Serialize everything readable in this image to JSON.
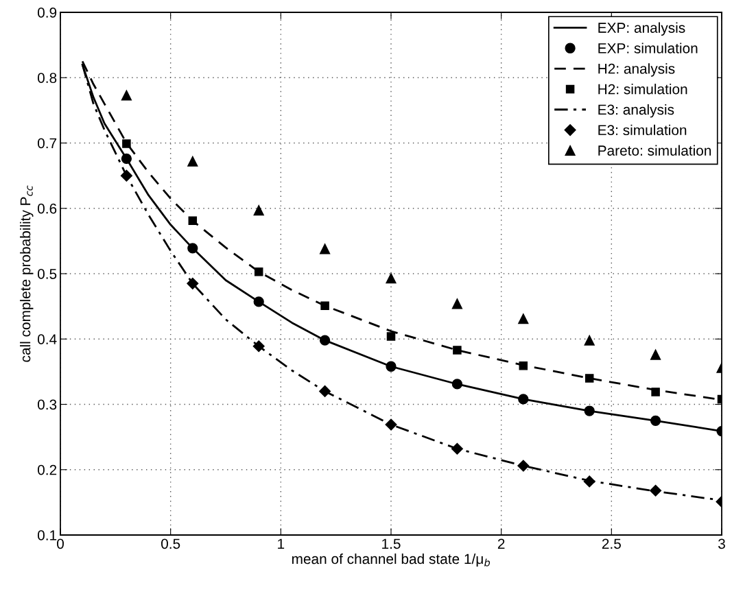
{
  "chart_data": {
    "type": "line",
    "xlabel": "mean of channel bad state 1/μ$_{b}$",
    "ylabel": "call complete probability P$_{cc}$",
    "xlim": [
      0,
      3
    ],
    "ylim": [
      0.1,
      0.9
    ],
    "xticks": [
      0,
      0.5,
      1,
      1.5,
      2,
      2.5,
      3
    ],
    "yticks": [
      0.1,
      0.2,
      0.3,
      0.4,
      0.5,
      0.6,
      0.7,
      0.8,
      0.9
    ],
    "grid": true,
    "legend": "top right",
    "series": [
      {
        "name": "EXP: analysis",
        "color": "#000000",
        "marker": "none",
        "line_style": "solid",
        "x": [
          0.1,
          0.15,
          0.2,
          0.3,
          0.4,
          0.5,
          0.6,
          0.75,
          0.9,
          1.05,
          1.2,
          1.5,
          1.8,
          2.1,
          2.4,
          2.7,
          3.0
        ],
        "values": [
          0.82,
          0.77,
          0.73,
          0.676,
          0.62,
          0.575,
          0.539,
          0.49,
          0.457,
          0.425,
          0.398,
          0.358,
          0.331,
          0.308,
          0.29,
          0.275,
          0.259
        ]
      },
      {
        "name": "EXP: simulation",
        "type": "scatter",
        "color": "#000000",
        "marker": "circle",
        "x": [
          0.3,
          0.6,
          0.9,
          1.2,
          1.5,
          1.8,
          2.1,
          2.4,
          2.7,
          3.0
        ],
        "values": [
          0.676,
          0.539,
          0.457,
          0.398,
          0.358,
          0.331,
          0.308,
          0.29,
          0.275,
          0.259
        ]
      },
      {
        "name": "H2: analysis",
        "color": "#000000",
        "marker": "none",
        "line_style": "dashed",
        "x": [
          0.1,
          0.15,
          0.2,
          0.3,
          0.4,
          0.5,
          0.6,
          0.75,
          0.9,
          1.05,
          1.2,
          1.5,
          1.8,
          2.1,
          2.4,
          2.7,
          3.0
        ],
        "values": [
          0.825,
          0.79,
          0.76,
          0.7,
          0.655,
          0.615,
          0.581,
          0.54,
          0.503,
          0.475,
          0.451,
          0.412,
          0.383,
          0.36,
          0.34,
          0.322,
          0.307
        ]
      },
      {
        "name": "H2: simulation",
        "type": "scatter",
        "color": "#000000",
        "marker": "square",
        "x": [
          0.3,
          0.6,
          0.9,
          1.2,
          1.5,
          1.8,
          2.1,
          2.4,
          2.7,
          3.0
        ],
        "values": [
          0.699,
          0.581,
          0.503,
          0.451,
          0.404,
          0.383,
          0.359,
          0.34,
          0.319,
          0.308
        ]
      },
      {
        "name": "E3: analysis",
        "color": "#000000",
        "marker": "none",
        "line_style": "dashdot",
        "x": [
          0.1,
          0.15,
          0.2,
          0.3,
          0.4,
          0.5,
          0.6,
          0.75,
          0.9,
          1.05,
          1.2,
          1.5,
          1.8,
          2.1,
          2.4,
          2.7,
          3.0
        ],
        "values": [
          0.82,
          0.76,
          0.72,
          0.65,
          0.59,
          0.535,
          0.485,
          0.43,
          0.389,
          0.352,
          0.32,
          0.269,
          0.232,
          0.206,
          0.183,
          0.167,
          0.153
        ]
      },
      {
        "name": "E3: simulation",
        "type": "scatter",
        "color": "#000000",
        "marker": "diamond",
        "x": [
          0.3,
          0.6,
          0.9,
          1.2,
          1.5,
          1.8,
          2.1,
          2.4,
          2.7,
          3.0
        ],
        "values": [
          0.65,
          0.485,
          0.389,
          0.32,
          0.269,
          0.232,
          0.206,
          0.182,
          0.168,
          0.151
        ]
      },
      {
        "name": "Pareto: simulation",
        "type": "scatter",
        "color": "#000000",
        "marker": "triangle",
        "x": [
          0.3,
          0.6,
          0.9,
          1.2,
          1.5,
          1.8,
          2.1,
          2.4,
          2.7,
          3.0
        ],
        "values": [
          0.773,
          0.672,
          0.597,
          0.538,
          0.493,
          0.454,
          0.431,
          0.398,
          0.376,
          0.356
        ]
      }
    ]
  }
}
